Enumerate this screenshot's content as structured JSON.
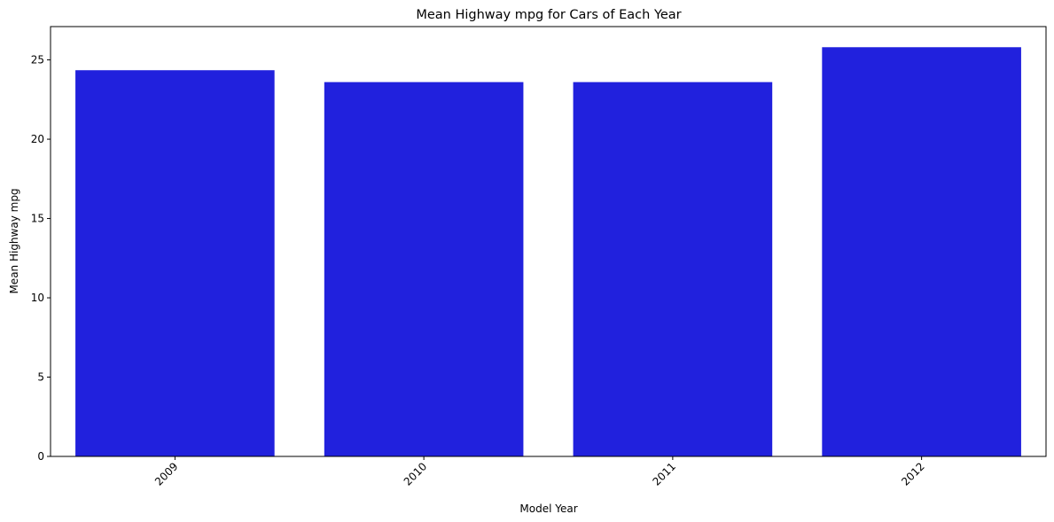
{
  "chart_data": {
    "type": "bar",
    "title": "Mean Highway mpg for Cars of Each Year",
    "xlabel": "Model Year",
    "ylabel": "Mean Highway mpg",
    "categories": [
      "2009",
      "2010",
      "2011",
      "2012"
    ],
    "values": [
      24.35,
      23.6,
      23.6,
      25.8
    ],
    "ylim": [
      0,
      27.1
    ],
    "yticks": [
      0,
      5,
      10,
      15,
      20,
      25
    ],
    "bar_color": "#2121dd",
    "grid": false,
    "legend": "none"
  }
}
